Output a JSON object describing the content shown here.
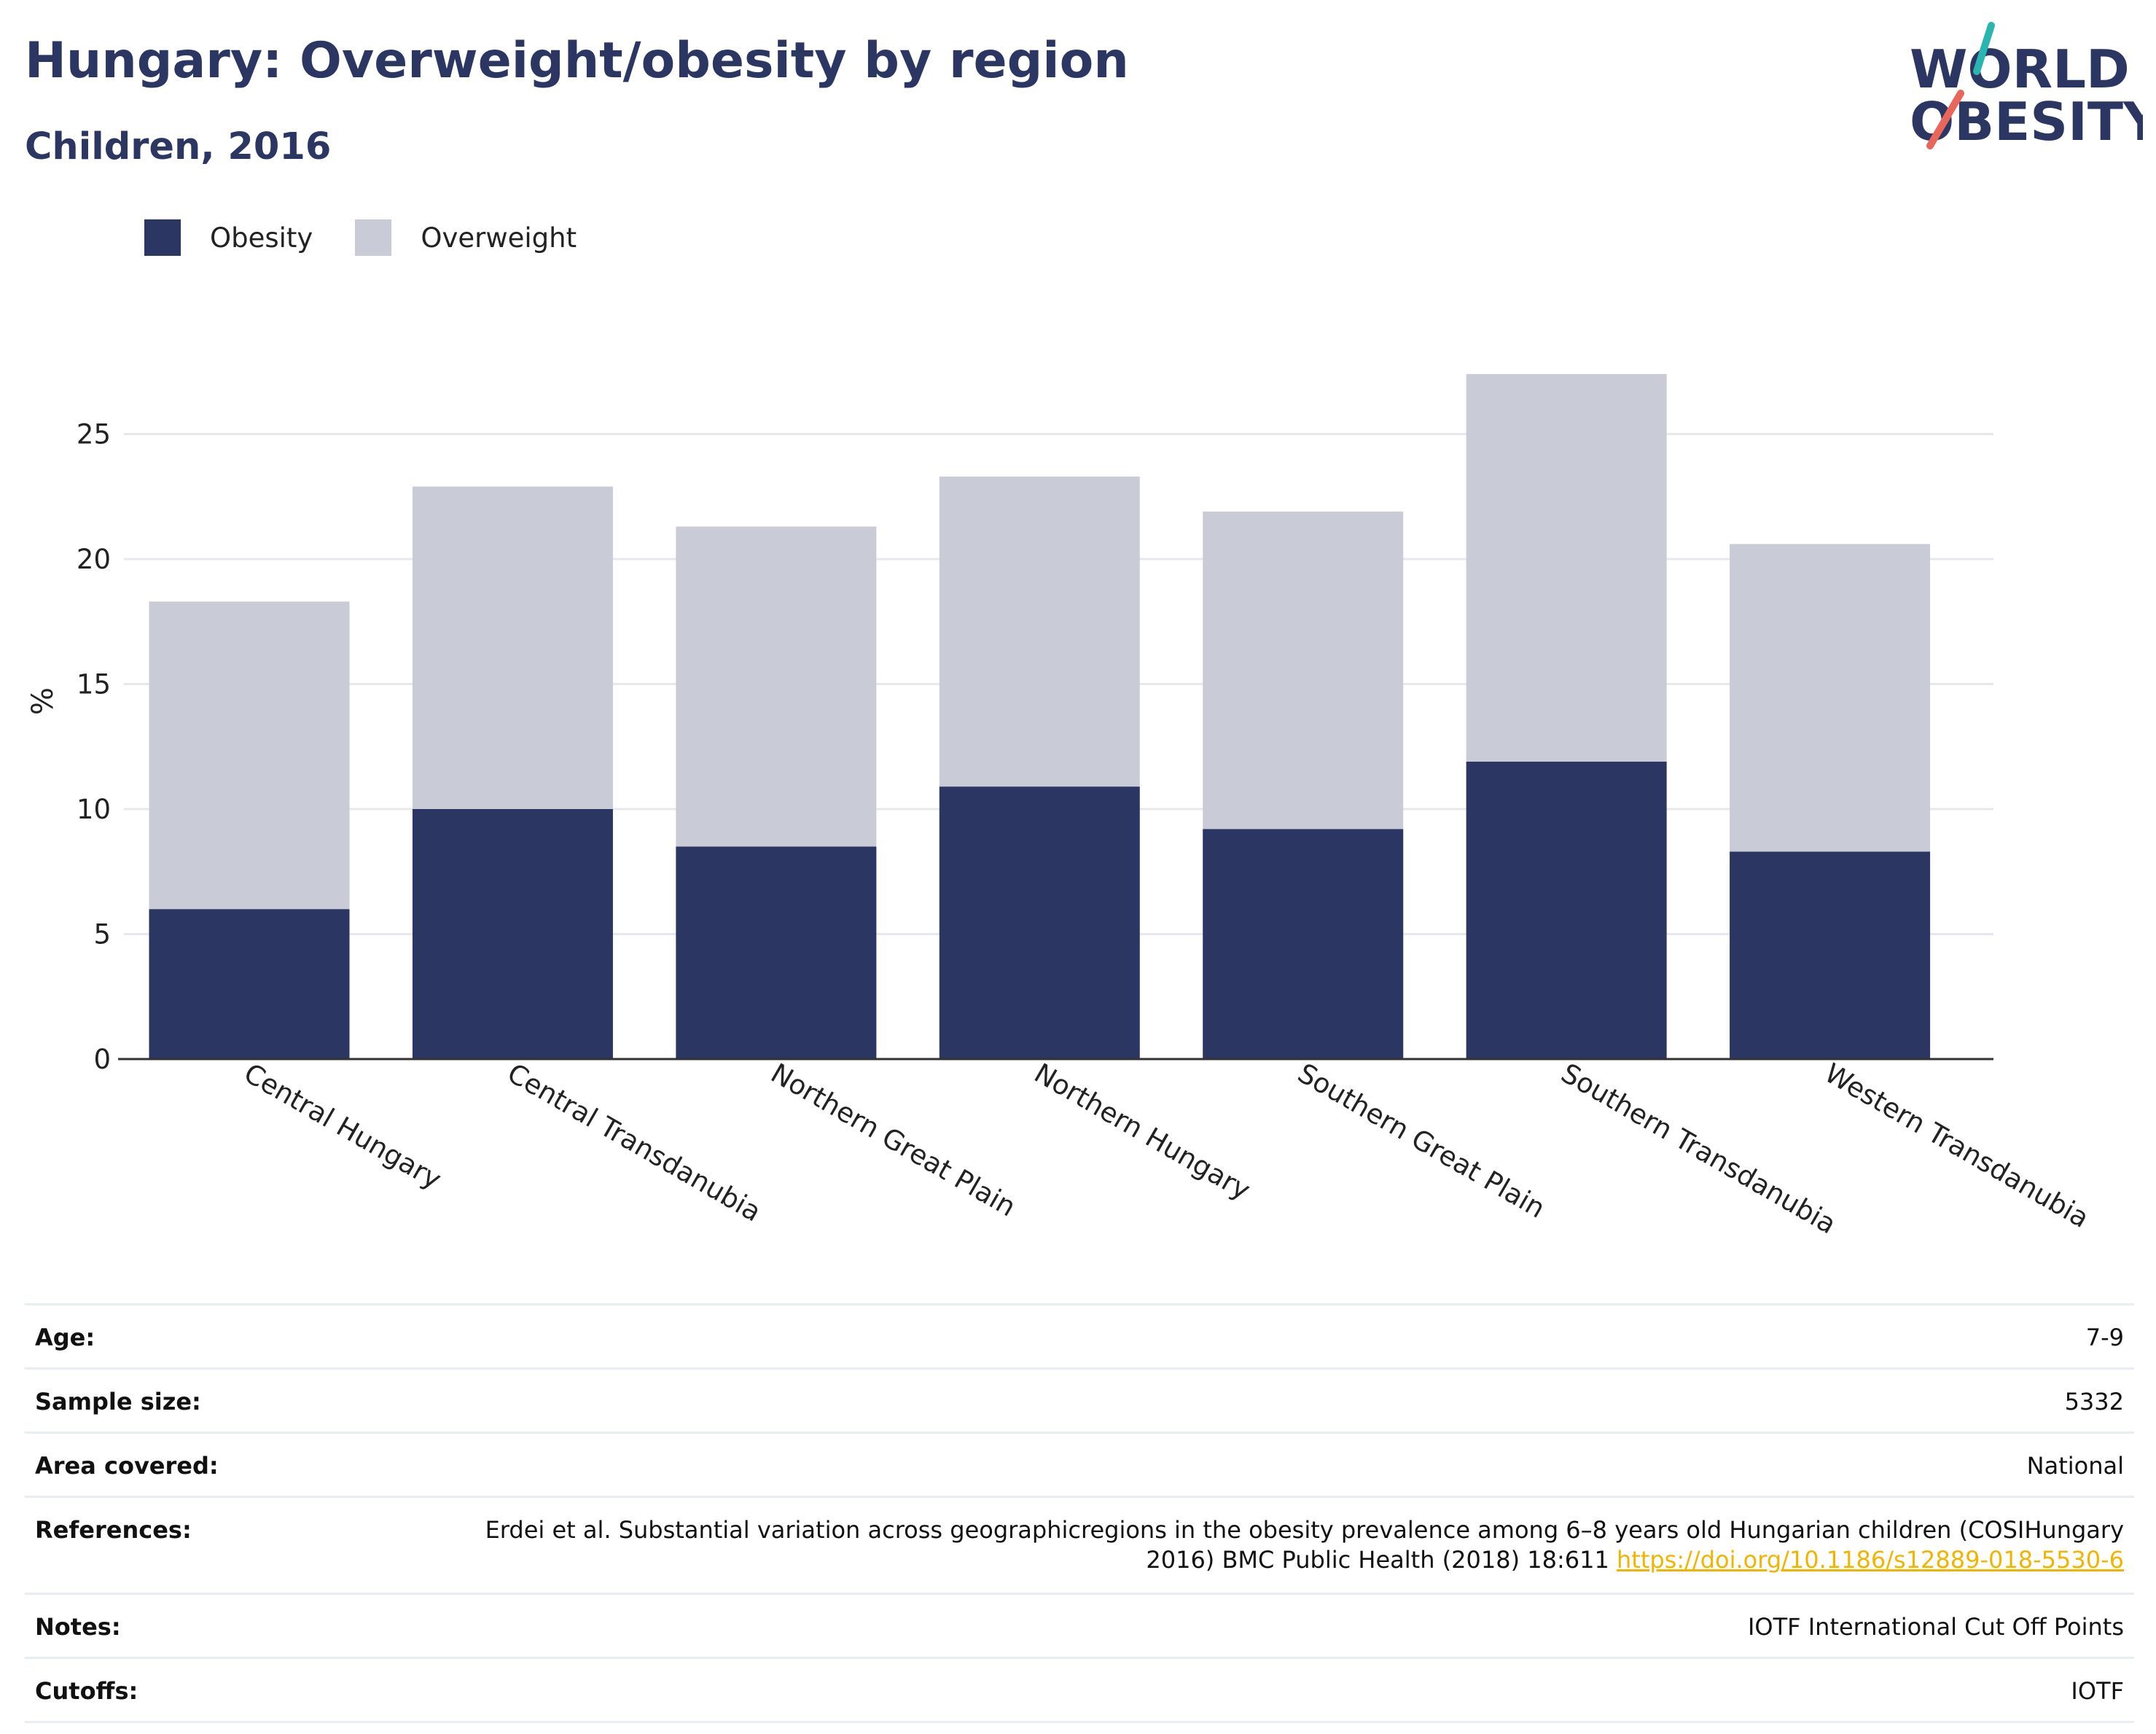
{
  "title": "Hungary: Overweight/obesity by region",
  "subtitle": "Children, 2016",
  "logo": {
    "line1": "WORLD",
    "line2": "OBESITY",
    "accent_colors": [
      "#2bb5b0",
      "#e8675a"
    ]
  },
  "legend": [
    {
      "label": "Obesity",
      "color": "#2b3663"
    },
    {
      "label": "Overweight",
      "color": "#c9cbd7"
    }
  ],
  "chart_data": {
    "type": "bar",
    "stacked": true,
    "categories": [
      "Central Hungary",
      "Central Transdanubia",
      "Northern Great Plain",
      "Northern Hungary",
      "Southern Great Plain",
      "Southern Transdanubia",
      "Western Transdanubia"
    ],
    "series": [
      {
        "name": "Obesity",
        "color": "#2b3663",
        "values": [
          6.0,
          10.0,
          8.5,
          10.9,
          9.2,
          11.9,
          8.3
        ]
      },
      {
        "name": "Overweight",
        "color": "#c9cbd7",
        "values": [
          12.3,
          12.9,
          12.8,
          12.4,
          12.7,
          15.5,
          12.3
        ]
      }
    ],
    "totals": [
      18.3,
      22.9,
      21.3,
      23.3,
      21.9,
      27.4,
      20.6
    ],
    "ylabel": "%",
    "xlabel": "",
    "ylim": [
      0,
      28
    ],
    "yticks": [
      0,
      5,
      10,
      15,
      20,
      25
    ],
    "grid": true,
    "legend_position": "top-left"
  },
  "info": {
    "rows": [
      {
        "key": "Age:",
        "value": "7-9"
      },
      {
        "key": "Sample size:",
        "value": "5332"
      },
      {
        "key": "Area covered:",
        "value": "National"
      },
      {
        "key": "Notes:",
        "value": "IOTF International Cut Off Points"
      },
      {
        "key": "Cutoffs:",
        "value": "IOTF"
      }
    ],
    "references": {
      "key": "References:",
      "text": "Erdei et al. Substantial variation across geographicregions in the obesity prevalence among 6–8 years old Hungarian children (COSIHungary 2016) BMC Public Health (2018) 18:611",
      "link": "https://doi.org/10.1186/s12889-018-5530-6"
    }
  }
}
